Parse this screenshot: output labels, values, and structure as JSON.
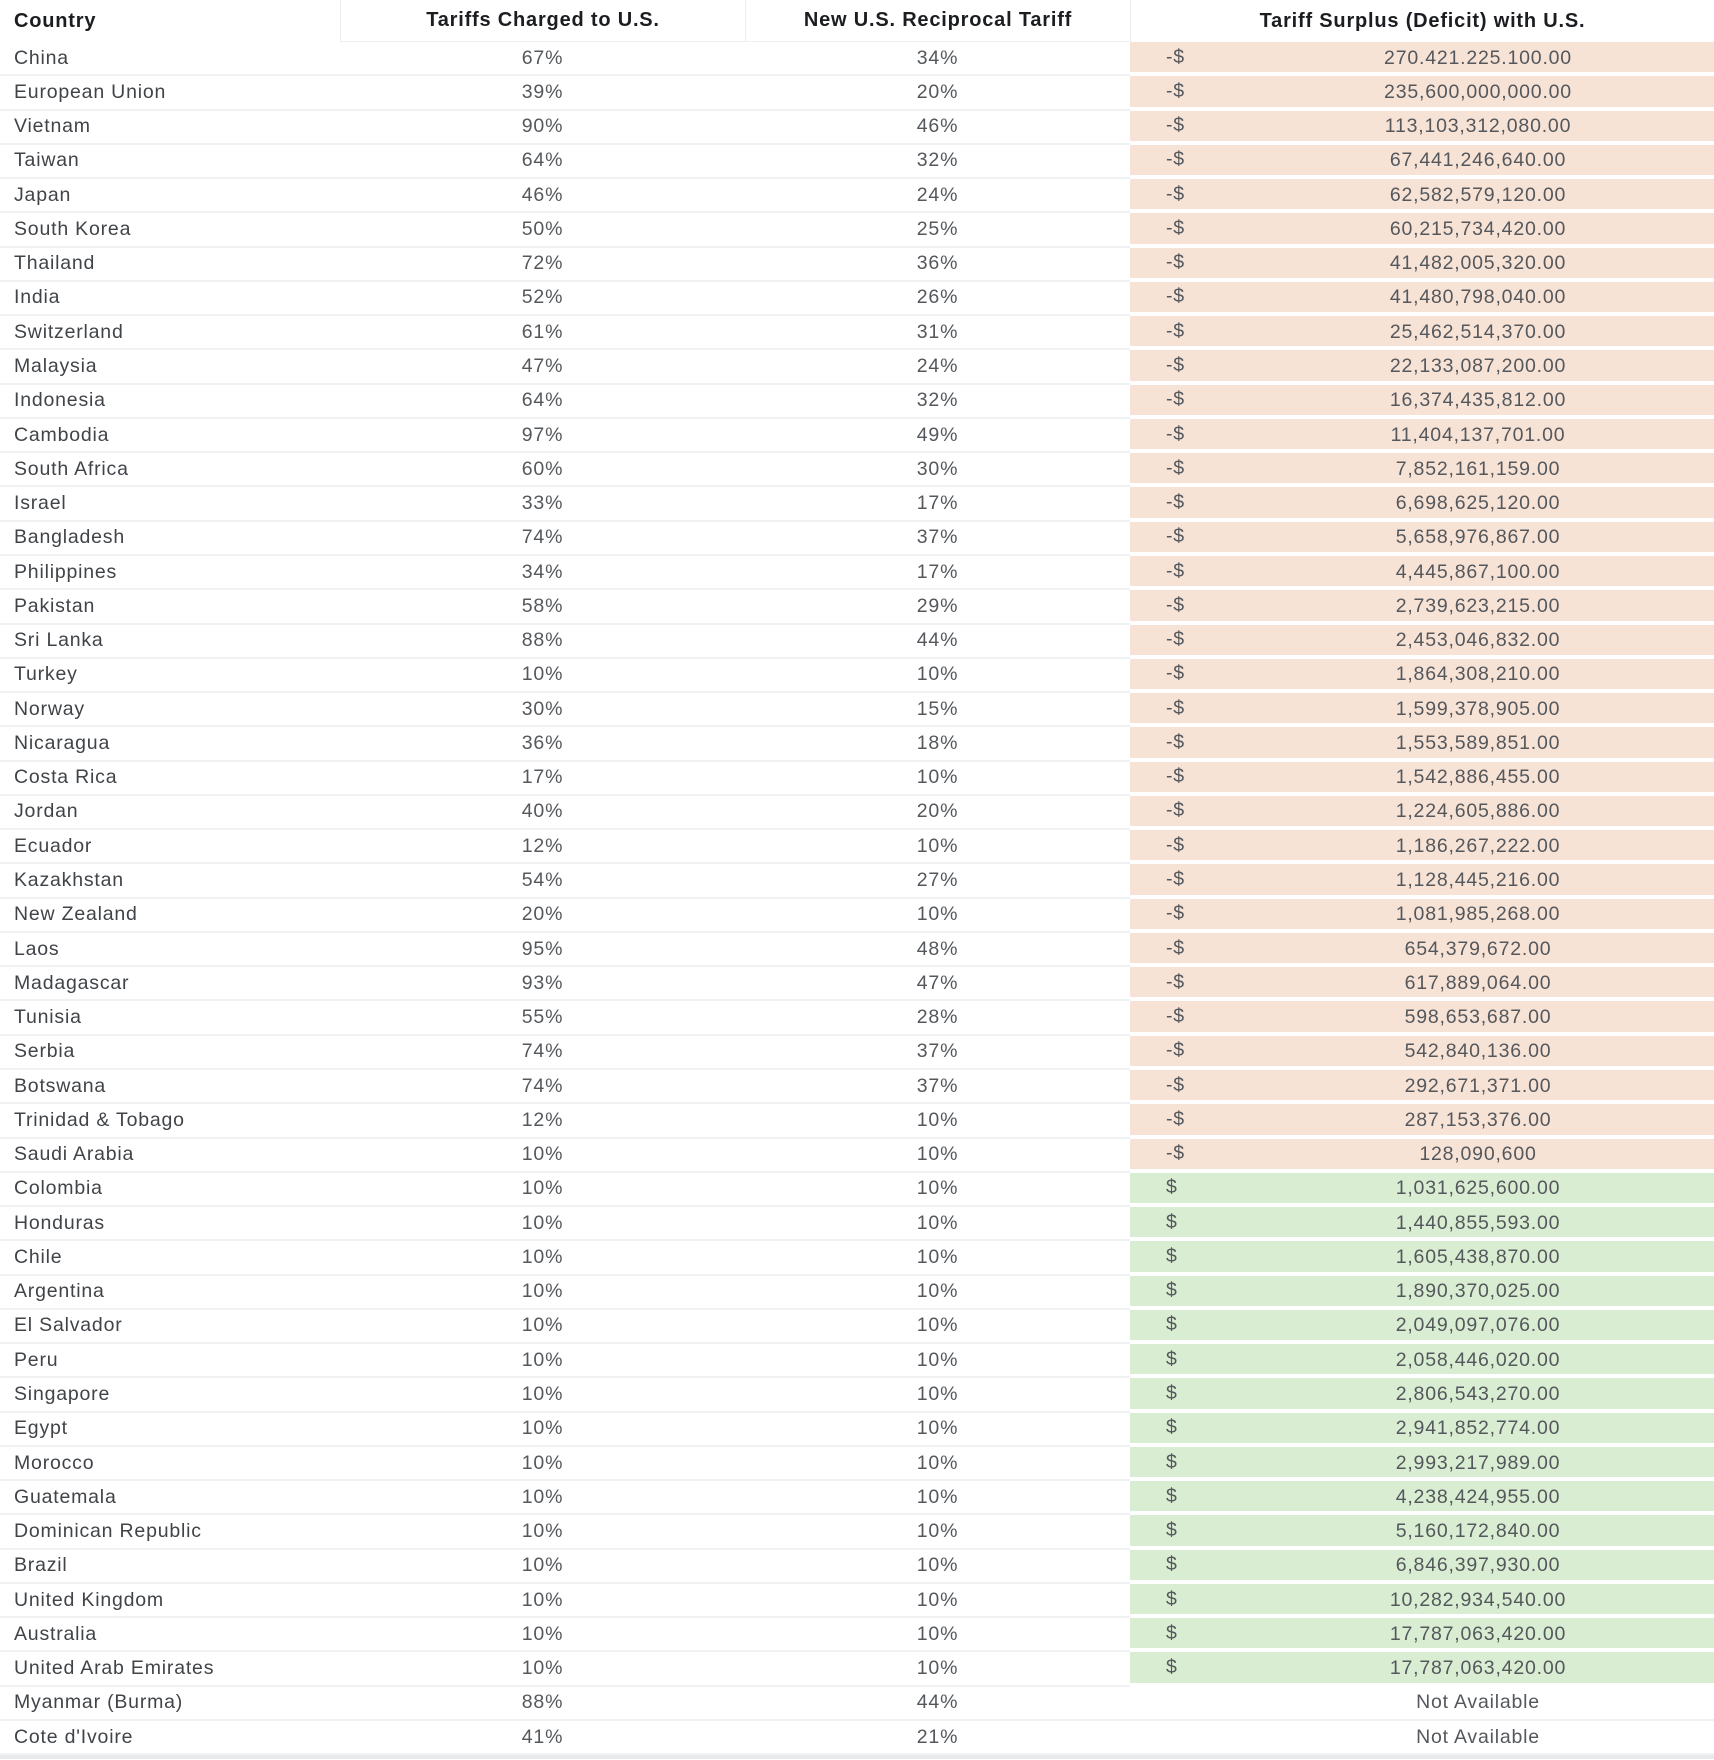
{
  "table": {
    "columns": [
      {
        "label": "Country"
      },
      {
        "label": "Tariffs Charged to U.S."
      },
      {
        "label": "New U.S. Reciprocal Tariff"
      },
      {
        "label": "Tariff Surplus (Deficit) with U.S."
      }
    ],
    "colors": {
      "deficit_bg": "#f7e2d6",
      "surplus_bg": "#d9edd2",
      "header_text": "#1b1d21",
      "country_text": "#404448",
      "value_text": "#54585c",
      "row_divider": "#eff1f3",
      "bottom_strip": "#e8e9ea"
    },
    "not_available_label": "Not Available",
    "rows": [
      {
        "country": "China",
        "charged": "67%",
        "reciprocal": "34%",
        "balance_type": "deficit",
        "sign": "-$",
        "amount": "270.421.225.100.00"
      },
      {
        "country": "European Union",
        "charged": "39%",
        "reciprocal": "20%",
        "balance_type": "deficit",
        "sign": "-$",
        "amount": "235,600,000,000.00"
      },
      {
        "country": "Vietnam",
        "charged": "90%",
        "reciprocal": "46%",
        "balance_type": "deficit",
        "sign": "-$",
        "amount": "113,103,312,080.00"
      },
      {
        "country": "Taiwan",
        "charged": "64%",
        "reciprocal": "32%",
        "balance_type": "deficit",
        "sign": "-$",
        "amount": "67,441,246,640.00"
      },
      {
        "country": "Japan",
        "charged": "46%",
        "reciprocal": "24%",
        "balance_type": "deficit",
        "sign": "-$",
        "amount": "62,582,579,120.00"
      },
      {
        "country": "South Korea",
        "charged": "50%",
        "reciprocal": "25%",
        "balance_type": "deficit",
        "sign": "-$",
        "amount": "60,215,734,420.00"
      },
      {
        "country": "Thailand",
        "charged": "72%",
        "reciprocal": "36%",
        "balance_type": "deficit",
        "sign": "-$",
        "amount": "41,482,005,320.00"
      },
      {
        "country": "India",
        "charged": "52%",
        "reciprocal": "26%",
        "balance_type": "deficit",
        "sign": "-$",
        "amount": "41,480,798,040.00"
      },
      {
        "country": "Switzerland",
        "charged": "61%",
        "reciprocal": "31%",
        "balance_type": "deficit",
        "sign": "-$",
        "amount": "25,462,514,370.00"
      },
      {
        "country": "Malaysia",
        "charged": "47%",
        "reciprocal": "24%",
        "balance_type": "deficit",
        "sign": "-$",
        "amount": "22,133,087,200.00"
      },
      {
        "country": "Indonesia",
        "charged": "64%",
        "reciprocal": "32%",
        "balance_type": "deficit",
        "sign": "-$",
        "amount": "16,374,435,812.00"
      },
      {
        "country": "Cambodia",
        "charged": "97%",
        "reciprocal": "49%",
        "balance_type": "deficit",
        "sign": "-$",
        "amount": "11,404,137,701.00"
      },
      {
        "country": "South Africa",
        "charged": "60%",
        "reciprocal": "30%",
        "balance_type": "deficit",
        "sign": "-$",
        "amount": "7,852,161,159.00"
      },
      {
        "country": "Israel",
        "charged": "33%",
        "reciprocal": "17%",
        "balance_type": "deficit",
        "sign": "-$",
        "amount": "6,698,625,120.00"
      },
      {
        "country": "Bangladesh",
        "charged": "74%",
        "reciprocal": "37%",
        "balance_type": "deficit",
        "sign": "-$",
        "amount": "5,658,976,867.00"
      },
      {
        "country": "Philippines",
        "charged": "34%",
        "reciprocal": "17%",
        "balance_type": "deficit",
        "sign": "-$",
        "amount": "4,445,867,100.00"
      },
      {
        "country": "Pakistan",
        "charged": "58%",
        "reciprocal": "29%",
        "balance_type": "deficit",
        "sign": "-$",
        "amount": "2,739,623,215.00"
      },
      {
        "country": "Sri Lanka",
        "charged": "88%",
        "reciprocal": "44%",
        "balance_type": "deficit",
        "sign": "-$",
        "amount": "2,453,046,832.00"
      },
      {
        "country": "Turkey",
        "charged": "10%",
        "reciprocal": "10%",
        "balance_type": "deficit",
        "sign": "-$",
        "amount": "1,864,308,210.00"
      },
      {
        "country": "Norway",
        "charged": "30%",
        "reciprocal": "15%",
        "balance_type": "deficit",
        "sign": "-$",
        "amount": "1,599,378,905.00"
      },
      {
        "country": "Nicaragua",
        "charged": "36%",
        "reciprocal": "18%",
        "balance_type": "deficit",
        "sign": "-$",
        "amount": "1,553,589,851.00"
      },
      {
        "country": "Costa Rica",
        "charged": "17%",
        "reciprocal": "10%",
        "balance_type": "deficit",
        "sign": "-$",
        "amount": "1,542,886,455.00"
      },
      {
        "country": "Jordan",
        "charged": "40%",
        "reciprocal": "20%",
        "balance_type": "deficit",
        "sign": "-$",
        "amount": "1,224,605,886.00"
      },
      {
        "country": "Ecuador",
        "charged": "12%",
        "reciprocal": "10%",
        "balance_type": "deficit",
        "sign": "-$",
        "amount": "1,186,267,222.00"
      },
      {
        "country": "Kazakhstan",
        "charged": "54%",
        "reciprocal": "27%",
        "balance_type": "deficit",
        "sign": "-$",
        "amount": "1,128,445,216.00"
      },
      {
        "country": "New Zealand",
        "charged": "20%",
        "reciprocal": "10%",
        "balance_type": "deficit",
        "sign": "-$",
        "amount": "1,081,985,268.00"
      },
      {
        "country": "Laos",
        "charged": "95%",
        "reciprocal": "48%",
        "balance_type": "deficit",
        "sign": "-$",
        "amount": "654,379,672.00"
      },
      {
        "country": "Madagascar",
        "charged": "93%",
        "reciprocal": "47%",
        "balance_type": "deficit",
        "sign": "-$",
        "amount": "617,889,064.00"
      },
      {
        "country": "Tunisia",
        "charged": "55%",
        "reciprocal": "28%",
        "balance_type": "deficit",
        "sign": "-$",
        "amount": "598,653,687.00"
      },
      {
        "country": "Serbia",
        "charged": "74%",
        "reciprocal": "37%",
        "balance_type": "deficit",
        "sign": "-$",
        "amount": "542,840,136.00"
      },
      {
        "country": "Botswana",
        "charged": "74%",
        "reciprocal": "37%",
        "balance_type": "deficit",
        "sign": "-$",
        "amount": "292,671,371.00"
      },
      {
        "country": "Trinidad & Tobago",
        "charged": "12%",
        "reciprocal": "10%",
        "balance_type": "deficit",
        "sign": "-$",
        "amount": "287,153,376.00"
      },
      {
        "country": "Saudi Arabia",
        "charged": "10%",
        "reciprocal": "10%",
        "balance_type": "deficit",
        "sign": "-$",
        "amount": "128,090,600"
      },
      {
        "country": "Colombia",
        "charged": "10%",
        "reciprocal": "10%",
        "balance_type": "surplus",
        "sign": "$",
        "amount": "1,031,625,600.00"
      },
      {
        "country": "Honduras",
        "charged": "10%",
        "reciprocal": "10%",
        "balance_type": "surplus",
        "sign": "$",
        "amount": "1,440,855,593.00"
      },
      {
        "country": "Chile",
        "charged": "10%",
        "reciprocal": "10%",
        "balance_type": "surplus",
        "sign": "$",
        "amount": "1,605,438,870.00"
      },
      {
        "country": "Argentina",
        "charged": "10%",
        "reciprocal": "10%",
        "balance_type": "surplus",
        "sign": "$",
        "amount": "1,890,370,025.00"
      },
      {
        "country": "El Salvador",
        "charged": "10%",
        "reciprocal": "10%",
        "balance_type": "surplus",
        "sign": "$",
        "amount": "2,049,097,076.00"
      },
      {
        "country": "Peru",
        "charged": "10%",
        "reciprocal": "10%",
        "balance_type": "surplus",
        "sign": "$",
        "amount": "2,058,446,020.00"
      },
      {
        "country": "Singapore",
        "charged": "10%",
        "reciprocal": "10%",
        "balance_type": "surplus",
        "sign": "$",
        "amount": "2,806,543,270.00"
      },
      {
        "country": "Egypt",
        "charged": "10%",
        "reciprocal": "10%",
        "balance_type": "surplus",
        "sign": "$",
        "amount": "2,941,852,774.00"
      },
      {
        "country": "Morocco",
        "charged": "10%",
        "reciprocal": "10%",
        "balance_type": "surplus",
        "sign": "$",
        "amount": "2,993,217,989.00"
      },
      {
        "country": "Guatemala",
        "charged": "10%",
        "reciprocal": "10%",
        "balance_type": "surplus",
        "sign": "$",
        "amount": "4,238,424,955.00"
      },
      {
        "country": "Dominican Republic",
        "charged": "10%",
        "reciprocal": "10%",
        "balance_type": "surplus",
        "sign": "$",
        "amount": "5,160,172,840.00"
      },
      {
        "country": "Brazil",
        "charged": "10%",
        "reciprocal": "10%",
        "balance_type": "surplus",
        "sign": "$",
        "amount": "6,846,397,930.00"
      },
      {
        "country": "United Kingdom",
        "charged": "10%",
        "reciprocal": "10%",
        "balance_type": "surplus",
        "sign": "$",
        "amount": "10,282,934,540.00"
      },
      {
        "country": "Australia",
        "charged": "10%",
        "reciprocal": "10%",
        "balance_type": "surplus",
        "sign": "$",
        "amount": "17,787,063,420.00"
      },
      {
        "country": "United Arab Emirates",
        "charged": "10%",
        "reciprocal": "10%",
        "balance_type": "surplus",
        "sign": "$",
        "amount": "17,787,063,420.00"
      },
      {
        "country": "Myanmar (Burma)",
        "charged": "88%",
        "reciprocal": "44%",
        "balance_type": "na",
        "sign": "",
        "amount": "Not Available"
      },
      {
        "country": "Cote d'Ivoire",
        "charged": "41%",
        "reciprocal": "21%",
        "balance_type": "na",
        "sign": "",
        "amount": "Not Available"
      }
    ]
  }
}
